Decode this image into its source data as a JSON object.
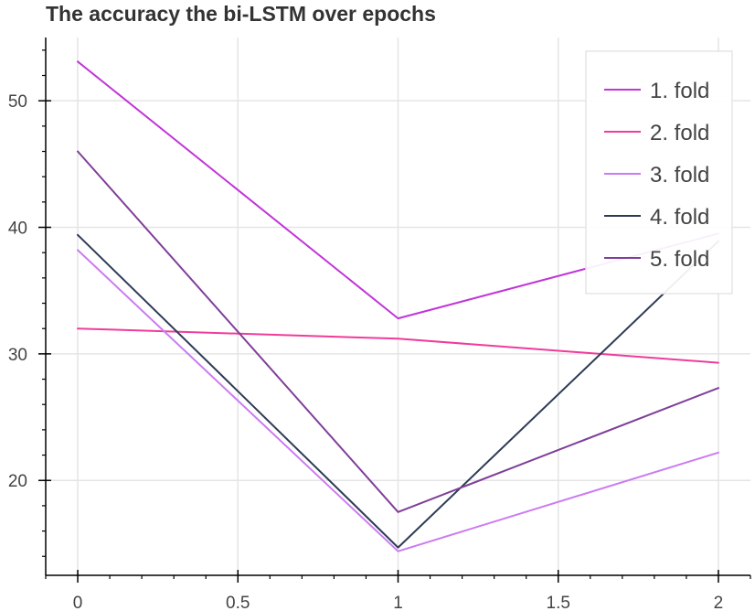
{
  "chart_data": {
    "type": "line",
    "title": "The accuracy the bi-LSTM over epochs",
    "xlabel": "",
    "ylabel": "",
    "x": [
      0,
      1,
      2
    ],
    "xlim": [
      -0.1,
      2.1
    ],
    "ylim": [
      12.5,
      55
    ],
    "x_ticks": [
      0,
      0.5,
      1,
      1.5,
      2
    ],
    "x_tick_labels": [
      "0",
      "0.5",
      "1",
      "1.5",
      "2"
    ],
    "x_minor_step": 0.1,
    "y_ticks": [
      20,
      30,
      40,
      50
    ],
    "y_tick_labels": [
      "20",
      "30",
      "40",
      "50"
    ],
    "y_minor_step": 2,
    "grid": true,
    "legend_position": "top-right",
    "series": [
      {
        "name": "1. fold",
        "values": [
          53.1,
          32.8,
          39.5
        ],
        "color": "#c135d8"
      },
      {
        "name": "2. fold",
        "values": [
          32.0,
          31.2,
          29.3
        ],
        "color": "#ef3c9a"
      },
      {
        "name": "3. fold",
        "values": [
          38.2,
          14.4,
          22.2
        ],
        "color": "#cc7bf2"
      },
      {
        "name": "4. fold",
        "values": [
          39.4,
          14.7,
          38.9
        ],
        "color": "#2e3b55"
      },
      {
        "name": "5. fold",
        "values": [
          46.0,
          17.5,
          27.3
        ],
        "color": "#7f3f98"
      }
    ]
  }
}
